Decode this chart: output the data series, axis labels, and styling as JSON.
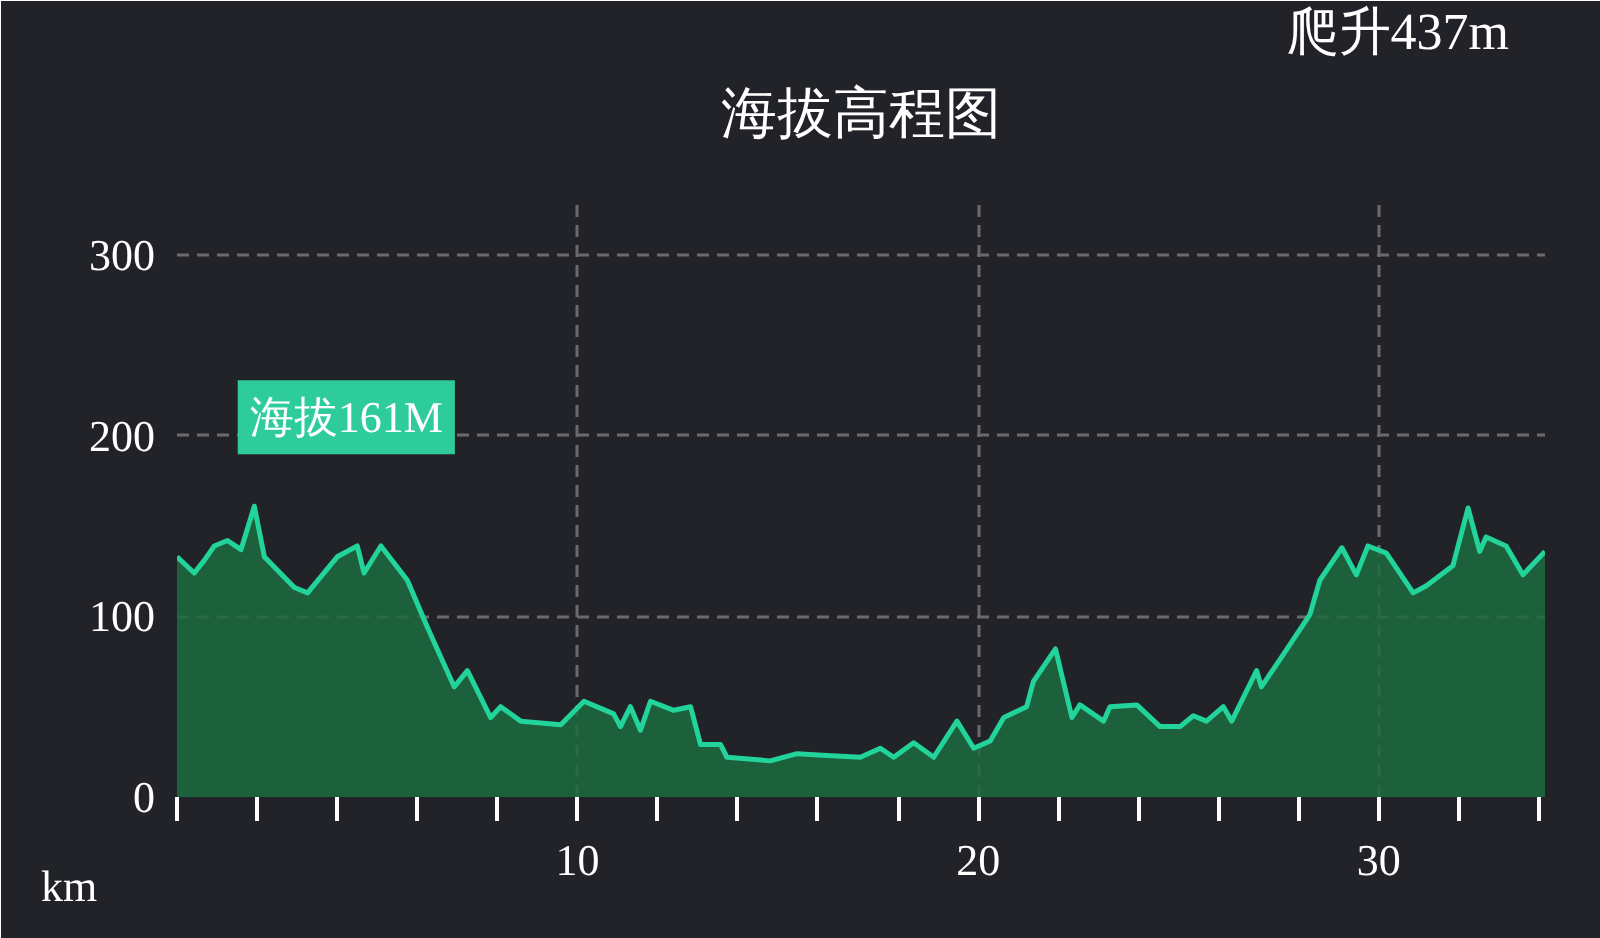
{
  "chart_data": {
    "type": "area",
    "title": "海拔高程图",
    "xlabel": "km",
    "annotations": [
      "爬升437m",
      {
        "text": "海拔161M",
        "x": 1.93,
        "y": 161
      }
    ],
    "x": [
      0,
      0.43,
      0.68,
      0.93,
      1.26,
      1.6,
      1.93,
      2.18,
      2.93,
      3.26,
      4.0,
      4.5,
      4.67,
      5.09,
      5.75,
      6.25,
      6.92,
      7.25,
      7.83,
      8.08,
      8.58,
      9.58,
      10.16,
      10.9,
      11.07,
      11.32,
      11.57,
      11.82,
      12.4,
      12.82,
      13.07,
      13.57,
      13.73,
      14.81,
      15.48,
      16.23,
      17.06,
      17.56,
      17.89,
      18.39,
      18.89,
      19.47,
      19.89,
      20.3,
      20.64,
      21.21,
      21.38,
      21.93,
      22.34,
      22.54,
      23.13,
      23.29,
      23.96,
      24.54,
      25.04,
      25.37,
      25.7,
      26.12,
      26.33,
      26.95,
      27.07,
      27.62,
      28.28,
      28.53,
      29.08,
      29.44,
      29.73,
      30.19,
      30.86,
      31.19,
      31.85,
      32.23,
      32.52,
      32.68,
      33.18,
      33.6,
      34.15
    ],
    "series": [
      {
        "color": "#22d39a",
        "values": [
          133,
          124,
          131,
          139,
          142,
          137,
          161,
          133,
          116,
          113,
          133,
          139,
          124,
          139,
          120,
          94,
          61,
          70,
          44,
          50,
          42,
          40,
          53,
          46,
          39,
          50,
          37,
          53,
          48,
          50,
          29,
          29,
          22,
          20,
          24,
          23,
          22,
          27,
          22,
          30,
          22,
          42,
          27,
          31,
          44,
          50,
          64,
          82,
          44,
          51,
          42,
          50,
          51,
          39,
          39,
          45,
          42,
          50,
          42,
          70,
          61,
          79,
          101,
          120,
          138,
          123,
          139,
          135,
          113,
          117,
          128,
          160,
          136,
          144,
          139,
          123,
          136
        ]
      }
    ],
    "xlim": [
      0,
      34.15
    ],
    "ylim": [
      0,
      330
    ],
    "xticks": [
      {
        "value": 0,
        "label": null
      },
      {
        "value": 2,
        "label": null
      },
      {
        "value": 4,
        "label": null
      },
      {
        "value": 6,
        "label": null
      },
      {
        "value": 8,
        "label": null
      },
      10,
      {
        "value": 12,
        "label": null
      },
      {
        "value": 14,
        "label": null
      },
      {
        "value": 16,
        "label": null
      },
      {
        "value": 18,
        "label": null
      },
      20,
      {
        "value": 22,
        "label": null
      },
      {
        "value": 24,
        "label": null
      },
      {
        "value": 26,
        "label": null
      },
      {
        "value": 28,
        "label": null
      },
      30,
      {
        "value": 32,
        "label": null
      },
      {
        "value": 34,
        "label": null
      }
    ],
    "yticks": [
      0,
      100,
      200,
      300
    ],
    "grid": true,
    "marker": "none",
    "line_style": "solid"
  }
}
